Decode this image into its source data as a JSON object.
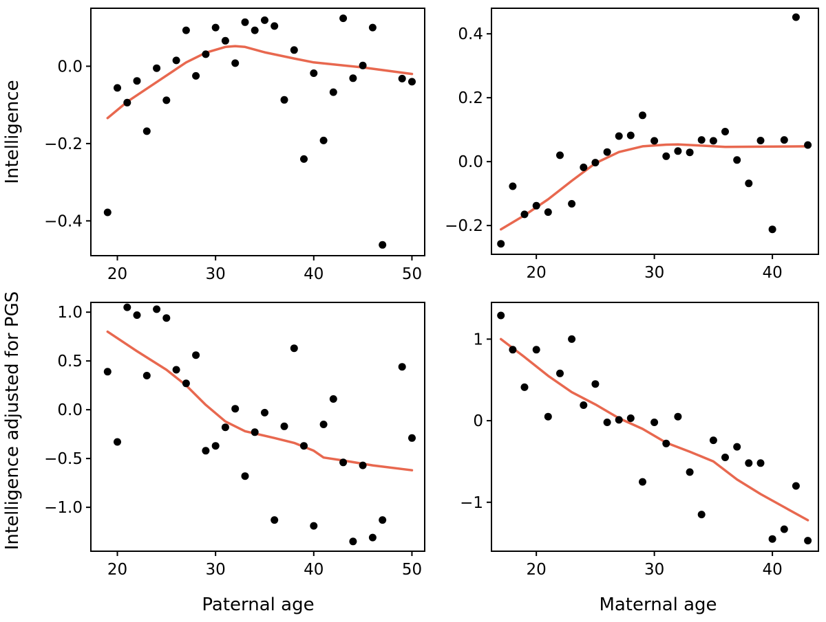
{
  "figure": {
    "ylabel_top": "Intelligence",
    "ylabel_bottom": "Intelligence adjusted for PGS",
    "xlabel_left": "Paternal age",
    "xlabel_right": "Maternal age"
  },
  "chart_data": [
    {
      "type": "scatter",
      "id": "paternal-intelligence",
      "xlim": [
        17.3,
        51.3
      ],
      "ylim": [
        -0.49,
        0.15
      ],
      "xticks": [
        20,
        30,
        40,
        50
      ],
      "xtick_labels": [
        "20",
        "30",
        "40",
        "50"
      ],
      "yticks": [
        0.0,
        -0.2,
        -0.4
      ],
      "ytick_labels": [
        "0.0",
        "−0.2",
        "−0.4"
      ],
      "xlabel": "",
      "ylabel": "Intelligence",
      "points": [
        [
          19,
          -0.378
        ],
        [
          20,
          -0.056
        ],
        [
          21,
          -0.094
        ],
        [
          22,
          -0.038
        ],
        [
          23,
          -0.168
        ],
        [
          24,
          -0.005
        ],
        [
          25,
          -0.088
        ],
        [
          26,
          0.015
        ],
        [
          27,
          0.093
        ],
        [
          28,
          -0.025
        ],
        [
          29,
          0.031
        ],
        [
          30,
          0.1
        ],
        [
          31,
          0.066
        ],
        [
          32,
          0.008
        ],
        [
          33,
          0.114
        ],
        [
          34,
          0.093
        ],
        [
          35,
          0.119
        ],
        [
          36,
          0.104
        ],
        [
          37,
          -0.087
        ],
        [
          38,
          0.042
        ],
        [
          39,
          -0.24
        ],
        [
          40,
          -0.018
        ],
        [
          41,
          -0.192
        ],
        [
          42,
          -0.067
        ],
        [
          43,
          0.124
        ],
        [
          44,
          -0.031
        ],
        [
          45,
          0.002
        ],
        [
          46,
          0.1
        ],
        [
          47,
          -0.462
        ],
        [
          49,
          -0.032
        ],
        [
          50,
          -0.04
        ]
      ],
      "trend": [
        [
          19,
          -0.134
        ],
        [
          21,
          -0.092
        ],
        [
          24,
          -0.041
        ],
        [
          27,
          0.01
        ],
        [
          29,
          0.035
        ],
        [
          31,
          0.05
        ],
        [
          32,
          0.052
        ],
        [
          33,
          0.05
        ],
        [
          35,
          0.036
        ],
        [
          38,
          0.02
        ],
        [
          40,
          0.01
        ],
        [
          45,
          -0.003
        ],
        [
          50,
          -0.02
        ]
      ]
    },
    {
      "type": "scatter",
      "id": "maternal-intelligence",
      "xlim": [
        16.2,
        43.9
      ],
      "ylim": [
        -0.29,
        0.48
      ],
      "xticks": [
        20,
        30,
        40
      ],
      "xtick_labels": [
        "20",
        "30",
        "40"
      ],
      "yticks": [
        0.4,
        0.2,
        0.0,
        -0.2
      ],
      "ytick_labels": [
        "0.4",
        "0.2",
        "0.0",
        "−0.2"
      ],
      "xlabel": "",
      "ylabel": "",
      "points": [
        [
          17,
          -0.257
        ],
        [
          18,
          -0.077
        ],
        [
          19,
          -0.165
        ],
        [
          20,
          -0.138
        ],
        [
          21,
          -0.158
        ],
        [
          22,
          0.02
        ],
        [
          23,
          -0.132
        ],
        [
          24,
          -0.018
        ],
        [
          25,
          -0.003
        ],
        [
          26,
          0.03
        ],
        [
          27,
          0.08
        ],
        [
          28,
          0.082
        ],
        [
          29,
          0.145
        ],
        [
          30,
          0.065
        ],
        [
          31,
          0.017
        ],
        [
          32,
          0.033
        ],
        [
          33,
          0.029
        ],
        [
          34,
          0.068
        ],
        [
          35,
          0.065
        ],
        [
          36,
          0.094
        ],
        [
          37,
          0.005
        ],
        [
          38,
          -0.068
        ],
        [
          39,
          0.066
        ],
        [
          40,
          -0.212
        ],
        [
          41,
          0.068
        ],
        [
          42,
          0.452
        ],
        [
          43,
          0.052
        ]
      ],
      "trend": [
        [
          17,
          -0.212
        ],
        [
          19,
          -0.168
        ],
        [
          21,
          -0.118
        ],
        [
          23,
          -0.06
        ],
        [
          25,
          -0.005
        ],
        [
          27,
          0.03
        ],
        [
          29,
          0.048
        ],
        [
          31,
          0.053
        ],
        [
          32,
          0.054
        ],
        [
          34,
          0.05
        ],
        [
          36,
          0.046
        ],
        [
          40,
          0.047
        ],
        [
          43,
          0.048
        ]
      ]
    },
    {
      "type": "scatter",
      "id": "paternal-adjusted",
      "xlim": [
        17.3,
        51.3
      ],
      "ylim": [
        -1.45,
        1.1
      ],
      "xticks": [
        20,
        30,
        40,
        50
      ],
      "xtick_labels": [
        "20",
        "30",
        "40",
        "50"
      ],
      "yticks": [
        1.0,
        0.5,
        0.0,
        -0.5,
        -1.0
      ],
      "ytick_labels": [
        "1.0",
        "0.5",
        "0.0",
        "−0.5",
        "−1.0"
      ],
      "xlabel": "Paternal age",
      "ylabel": "Intelligence adjusted for PGS",
      "points": [
        [
          19,
          0.39
        ],
        [
          20,
          -0.33
        ],
        [
          21,
          1.05
        ],
        [
          22,
          0.97
        ],
        [
          23,
          0.35
        ],
        [
          24,
          1.03
        ],
        [
          25,
          0.94
        ],
        [
          26,
          0.41
        ],
        [
          27,
          0.27
        ],
        [
          28,
          0.56
        ],
        [
          29,
          -0.42
        ],
        [
          30,
          -0.37
        ],
        [
          31,
          -0.18
        ],
        [
          32,
          0.01
        ],
        [
          33,
          -0.68
        ],
        [
          34,
          -0.23
        ],
        [
          35,
          -0.03
        ],
        [
          36,
          -1.13
        ],
        [
          37,
          -0.17
        ],
        [
          38,
          0.63
        ],
        [
          39,
          -0.37
        ],
        [
          40,
          -1.19
        ],
        [
          41,
          -0.15
        ],
        [
          42,
          0.11
        ],
        [
          43,
          -0.54
        ],
        [
          44,
          -1.35
        ],
        [
          45,
          -0.57
        ],
        [
          46,
          -1.31
        ],
        [
          47,
          -1.13
        ],
        [
          49,
          0.44
        ],
        [
          50,
          -0.29
        ]
      ],
      "trend": [
        [
          19,
          0.8
        ],
        [
          22,
          0.6
        ],
        [
          25,
          0.41
        ],
        [
          27,
          0.25
        ],
        [
          29,
          0.05
        ],
        [
          31,
          -0.12
        ],
        [
          33,
          -0.22
        ],
        [
          36,
          -0.29
        ],
        [
          38,
          -0.34
        ],
        [
          40,
          -0.42
        ],
        [
          41,
          -0.49
        ],
        [
          43,
          -0.52
        ],
        [
          46,
          -0.57
        ],
        [
          50,
          -0.62
        ]
      ]
    },
    {
      "type": "scatter",
      "id": "maternal-adjusted",
      "xlim": [
        16.2,
        43.9
      ],
      "ylim": [
        -1.6,
        1.45
      ],
      "xticks": [
        20,
        30,
        40
      ],
      "xtick_labels": [
        "20",
        "30",
        "40"
      ],
      "yticks": [
        1,
        0,
        -1
      ],
      "ytick_labels": [
        "1",
        "0",
        "−1"
      ],
      "xlabel": "Maternal age",
      "ylabel": "",
      "points": [
        [
          17,
          1.29
        ],
        [
          18,
          0.87
        ],
        [
          19,
          0.41
        ],
        [
          20,
          0.87
        ],
        [
          21,
          0.05
        ],
        [
          22,
          0.58
        ],
        [
          23,
          1.0
        ],
        [
          24,
          0.19
        ],
        [
          25,
          0.45
        ],
        [
          26,
          -0.02
        ],
        [
          27,
          0.01
        ],
        [
          28,
          0.03
        ],
        [
          29,
          -0.75
        ],
        [
          30,
          -0.02
        ],
        [
          31,
          -0.28
        ],
        [
          32,
          0.05
        ],
        [
          33,
          -0.63
        ],
        [
          34,
          -1.15
        ],
        [
          35,
          -0.24
        ],
        [
          36,
          -0.45
        ],
        [
          37,
          -0.32
        ],
        [
          38,
          -0.52
        ],
        [
          39,
          -0.52
        ],
        [
          40,
          -1.45
        ],
        [
          41,
          -1.33
        ],
        [
          42,
          -0.8
        ],
        [
          43,
          -1.47
        ]
      ],
      "trend": [
        [
          17,
          1.0
        ],
        [
          19,
          0.78
        ],
        [
          21,
          0.55
        ],
        [
          23,
          0.35
        ],
        [
          25,
          0.2
        ],
        [
          27,
          0.03
        ],
        [
          29,
          -0.1
        ],
        [
          31,
          -0.27
        ],
        [
          33,
          -0.38
        ],
        [
          35,
          -0.5
        ],
        [
          37,
          -0.72
        ],
        [
          39,
          -0.9
        ],
        [
          41,
          -1.06
        ],
        [
          43,
          -1.22
        ]
      ]
    }
  ]
}
